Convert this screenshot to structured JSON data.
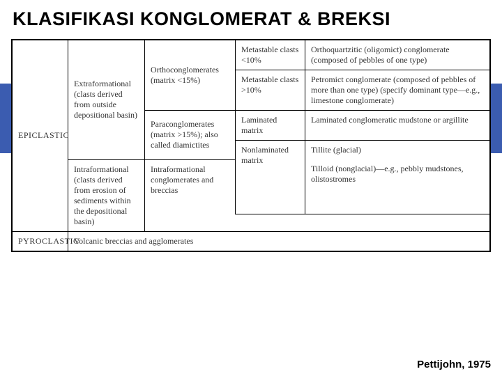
{
  "title": "KLASIFIKASI KONGLOMERAT & BREKSI",
  "citation": "Pettijohn, 1975",
  "labels": {
    "epiclastic": "EPICLASTIC",
    "pyroclastic": "PYROCLASTIC"
  },
  "cells": {
    "extra": "Extraformational (clasts derived from outside depositional basin)",
    "ortho": "Orthoconglomerates (matrix <15%)",
    "para": "Paraconglomerates (matrix >15%); also called diamictites",
    "meta_lt10": "Metastable clasts <10%",
    "meta_gt10": "Metastable clasts >10%",
    "lam": "Laminated matrix",
    "nonlam": "Nonlaminated matrix",
    "orthoq": "Orthoquartzitic (oligomict) conglomerate (composed of pebbles of one type)",
    "petromict": "Petromict conglomerate (composed of pebbles of more than one type) (specify dominant type—e.g., limestone conglomerate)",
    "lam_cong": "Laminated conglomeratic mudstone or argillite",
    "tillite": "Tillite (glacial)",
    "tilloid": "Tilloid (nonglacial)—e.g., pebbly mudstones, olistostromes",
    "intra_label": "Intraformational (clasts derived from erosion of sediments within the depositional basin)",
    "intra_span": "Intraformational conglomerates and breccias",
    "pyro_span": "Volcanic breccias and agglomerates"
  },
  "style": {
    "title_fontsize": 27,
    "cell_fontsize": 12,
    "border_color": "#000000",
    "band_color": "#3b5cb0",
    "background": "#ffffff"
  }
}
